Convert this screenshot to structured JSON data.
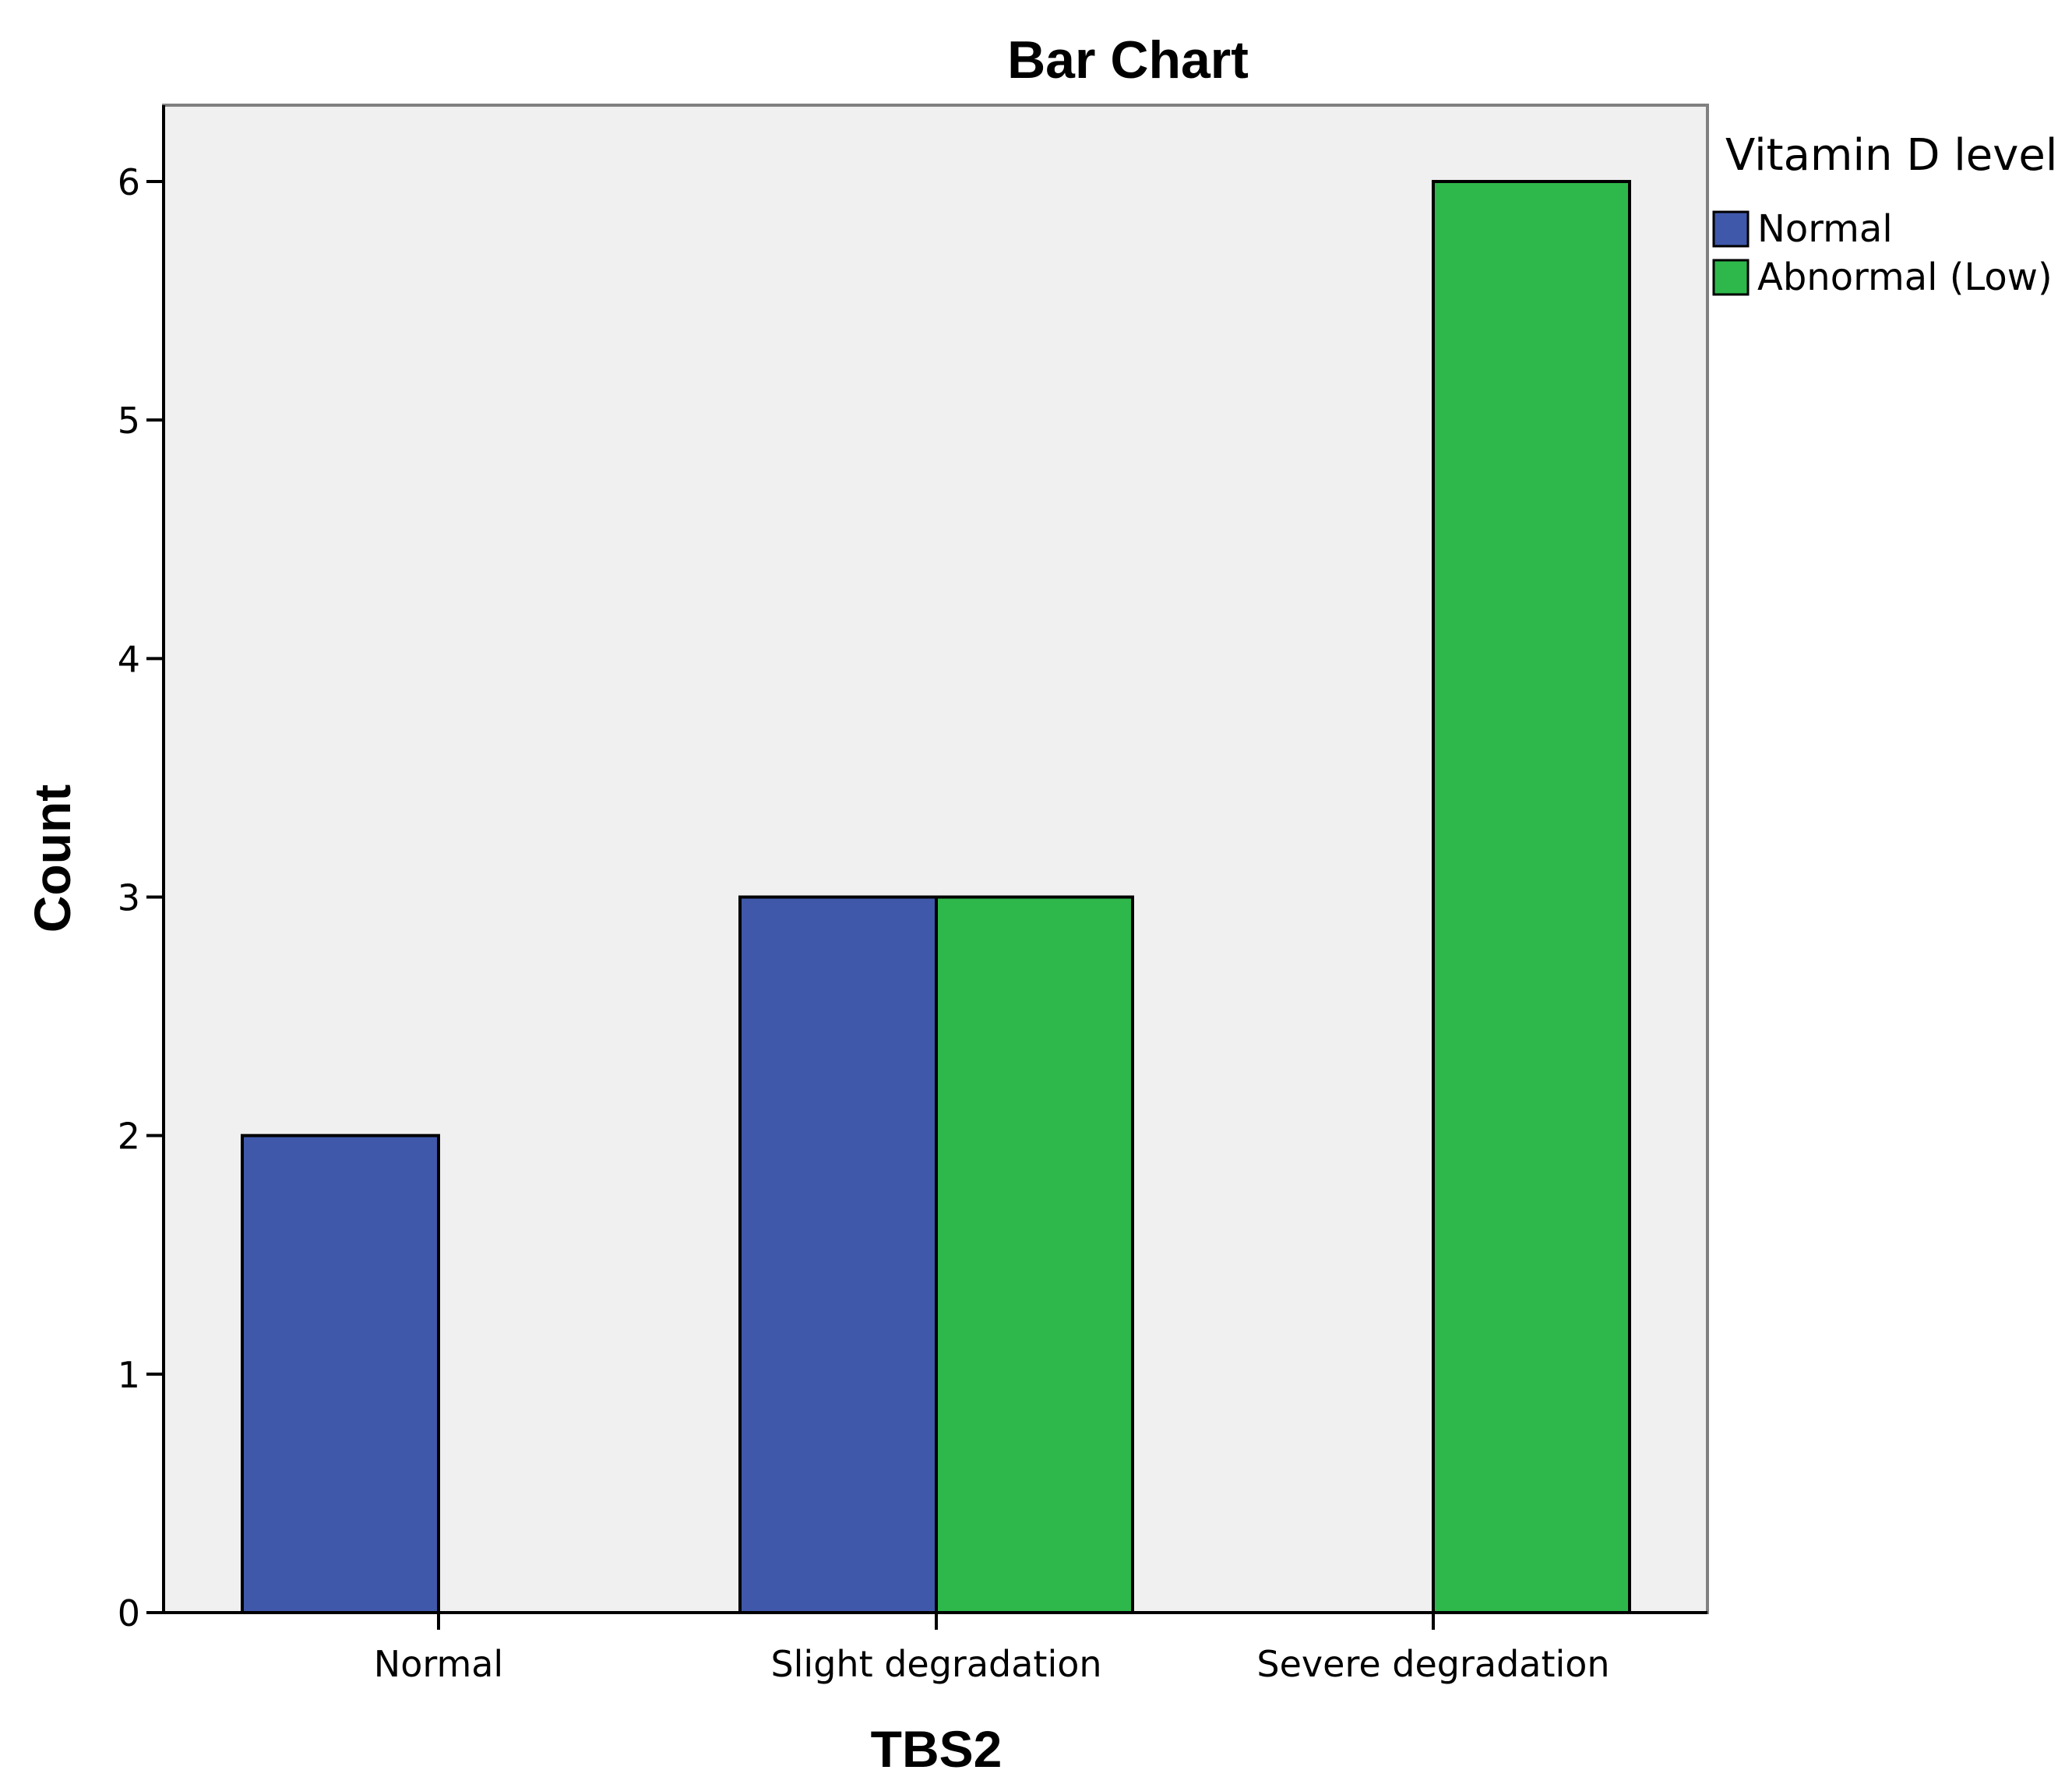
{
  "chart_data": {
    "type": "bar",
    "title": "Bar Chart",
    "xlabel": "TBS2",
    "ylabel": "Count",
    "categories": [
      "Normal",
      "Slight degradation",
      "Severe degradation"
    ],
    "series": [
      {
        "name": "Normal",
        "values": [
          2,
          3,
          0
        ],
        "color": "#3f58aa"
      },
      {
        "name": "Abnormal (Low)",
        "values": [
          0,
          3,
          6
        ],
        "color": "#2eb84b"
      }
    ],
    "ylim": [
      0,
      6.32
    ],
    "yticks": [
      "0",
      "1",
      "2",
      "3",
      "4",
      "5",
      "6"
    ],
    "legend": {
      "title": "Vitamin D level",
      "placement": "right-top"
    },
    "grid": false,
    "plot_background": "#f0f0f0"
  }
}
